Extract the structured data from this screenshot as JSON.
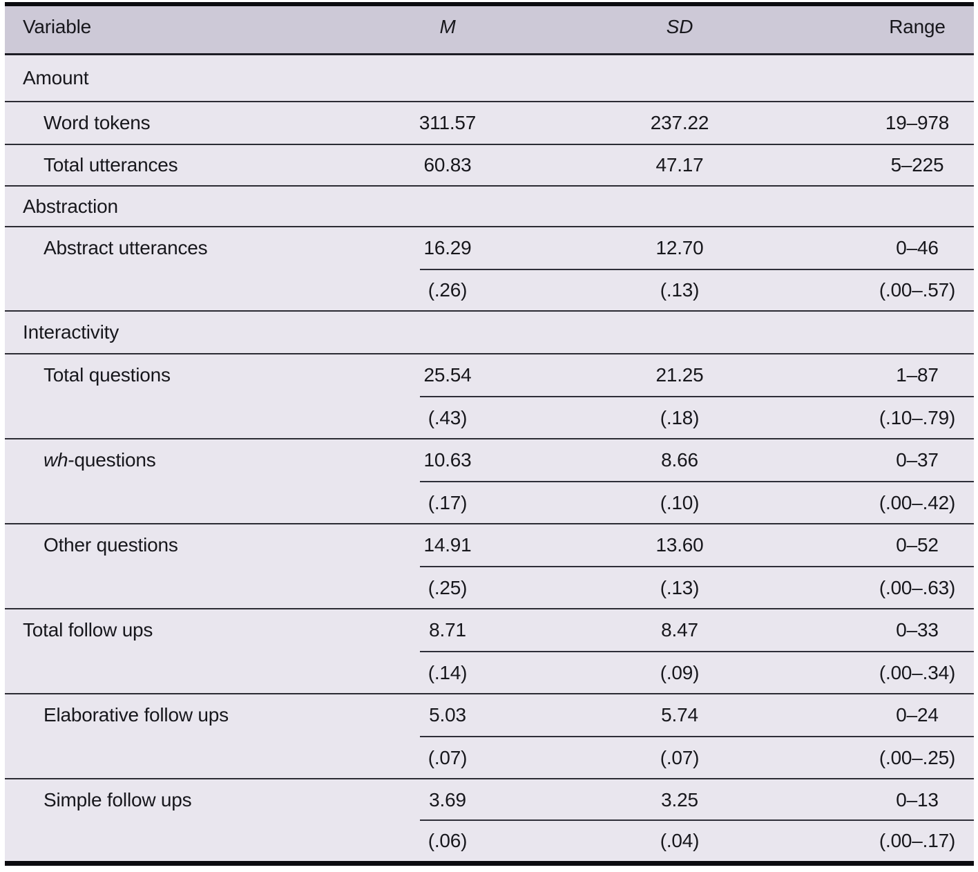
{
  "table": {
    "title_hint": "Descriptive statistics table",
    "header": {
      "variable": "Variable",
      "m": "M",
      "sd": "SD",
      "range": "Range"
    },
    "rows": [
      {
        "type": "section",
        "label": "Amount"
      },
      {
        "type": "data",
        "label": "Word tokens",
        "m": "311.57",
        "sd": "237.22",
        "range": "19–978"
      },
      {
        "type": "data",
        "label": "Total utterances",
        "m": "60.83",
        "sd": "47.17",
        "range": "5–225"
      },
      {
        "type": "section",
        "label": "Abstraction"
      },
      {
        "type": "data2",
        "label": "Abstract utterances",
        "m": "16.29",
        "sd": "12.70",
        "range": "0–46",
        "prop_m": "(.26)",
        "prop_sd": "(.13)",
        "prop_range": "(.00–.57)"
      },
      {
        "type": "section",
        "label": "Interactivity"
      },
      {
        "type": "data2",
        "label": "Total questions",
        "m": "25.54",
        "sd": "21.25",
        "range": "1–87",
        "prop_m": "(.43)",
        "prop_sd": "(.18)",
        "prop_range": "(.10–.79)"
      },
      {
        "type": "data2",
        "label_italic": "wh",
        "label_rest": "-questions",
        "m": "10.63",
        "sd": "8.66",
        "range": "0–37",
        "prop_m": "(.17)",
        "prop_sd": "(.10)",
        "prop_range": "(.00–.42)"
      },
      {
        "type": "data2",
        "label": "Other questions",
        "m": "14.91",
        "sd": "13.60",
        "range": "0–52",
        "prop_m": "(.25)",
        "prop_sd": "(.13)",
        "prop_range": "(.00–.63)"
      },
      {
        "type": "data2",
        "label": "Total follow ups",
        "section_level": true,
        "m": "8.71",
        "sd": "8.47",
        "range": "0–33",
        "prop_m": "(.14)",
        "prop_sd": "(.09)",
        "prop_range": "(.00–.34)"
      },
      {
        "type": "data2",
        "label": "Elaborative follow ups",
        "m": "5.03",
        "sd": "5.74",
        "range": "0–24",
        "prop_m": "(.07)",
        "prop_sd": "(.07)",
        "prop_range": "(.00–.25)"
      },
      {
        "type": "data2",
        "label": "Simple follow ups",
        "m": "3.69",
        "sd": "3.25",
        "range": "0–13",
        "prop_m": "(.06)",
        "prop_sd": "(.04)",
        "prop_range": "(.00–.17)"
      }
    ],
    "colors": {
      "header_bg": "#cdc9d7",
      "body_bg": "#e9e6ee",
      "thin_rule": "#2b2b33",
      "thick_border": "#0b0b0f",
      "text": "#17171c"
    }
  }
}
